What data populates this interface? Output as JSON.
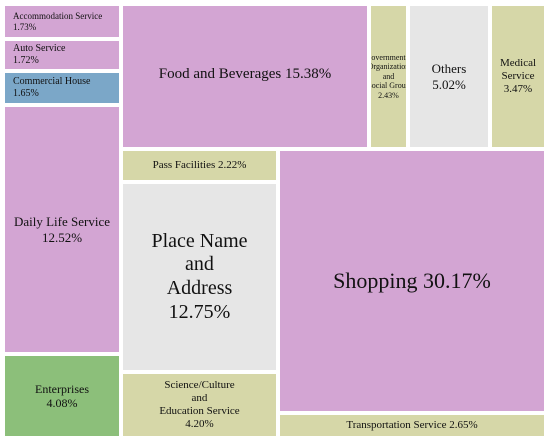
{
  "chart_data": {
    "type": "treemap",
    "title": "",
    "colors": {
      "pink": "#d3a5d3",
      "khaki": "#d6d7a8",
      "grey": "#e6e6e6",
      "blue": "#7ba7c8",
      "green": "#8cbf7a"
    },
    "tiles": [
      {
        "id": "accommodation",
        "lines": [
          "Accommodation Service",
          "1.73%"
        ],
        "value": 1.73,
        "color": "pink",
        "size": 9,
        "align": "left"
      },
      {
        "id": "auto",
        "lines": [
          "Auto Service",
          "1.72%"
        ],
        "value": 1.72,
        "color": "pink",
        "size": 10,
        "align": "left"
      },
      {
        "id": "commercial-house",
        "lines": [
          "Commercial House",
          "1.65%"
        ],
        "value": 1.65,
        "color": "blue",
        "size": 10,
        "align": "left"
      },
      {
        "id": "daily-life",
        "lines": [
          "Daily Life Service",
          "12.52%"
        ],
        "value": 12.52,
        "color": "pink",
        "size": 13
      },
      {
        "id": "enterprises",
        "lines": [
          "Enterprises",
          "4.08%"
        ],
        "value": 4.08,
        "color": "green",
        "size": 12
      },
      {
        "id": "food",
        "lines": [
          "Food and Beverages  15.38%"
        ],
        "value": 15.38,
        "color": "pink",
        "size": 15,
        "valign": "top",
        "offset": 60
      },
      {
        "id": "government",
        "lines": [
          "Governmental",
          "Organization",
          "and",
          "Social Group",
          "2.43%"
        ],
        "value": 2.43,
        "color": "khaki",
        "size": 8
      },
      {
        "id": "others",
        "lines": [
          "Others",
          "5.02%"
        ],
        "value": 5.02,
        "color": "grey",
        "size": 13
      },
      {
        "id": "medical",
        "lines": [
          "Medical",
          "Service",
          "3.47%"
        ],
        "value": 3.47,
        "color": "khaki",
        "size": 11
      },
      {
        "id": "pass",
        "lines": [
          "Pass Facilities  2.22%"
        ],
        "value": 2.22,
        "color": "khaki",
        "size": 11
      },
      {
        "id": "place",
        "lines": [
          "Place Name",
          "and",
          "Address",
          "12.75%"
        ],
        "value": 12.75,
        "color": "grey",
        "size": 20
      },
      {
        "id": "science",
        "lines": [
          "Science/Culture",
          "and",
          "Education Service",
          "4.20%"
        ],
        "value": 4.2,
        "color": "khaki",
        "size": 11
      },
      {
        "id": "shopping",
        "lines": [
          "Shopping  30.17%"
        ],
        "value": 30.17,
        "color": "pink",
        "size": 22
      },
      {
        "id": "transportation",
        "lines": [
          "Transportation Service  2.65%"
        ],
        "value": 2.65,
        "color": "khaki",
        "size": 11
      }
    ]
  }
}
